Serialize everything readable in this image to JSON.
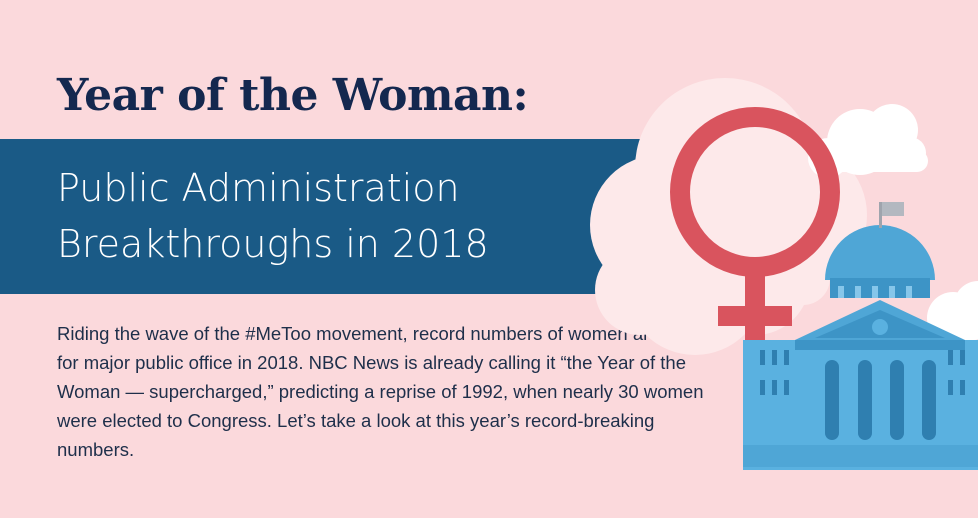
{
  "header": {
    "title": "Year of the Woman:",
    "subtitle_line1": "Public Administration",
    "subtitle_line2": "Breakthroughs in 2018"
  },
  "intro": {
    "text": "Riding the wave of the #MeToo movement, record numbers of women are running for major public office in 2018. NBC News is already calling it “the Year of the Woman — supercharged,” predicting a reprise of 1992, when nearly 30 women were elected to Congress. Let’s take a look at this year’s record-breaking numbers."
  },
  "illustration": {
    "icons": [
      "cloud-icon",
      "female-symbol-icon",
      "capitol-building-icon",
      "flag-icon"
    ]
  },
  "colors": {
    "background": "#fbd9dc",
    "banner": "#1a5a86",
    "title": "#14284f",
    "female_symbol": "#d9545e",
    "building": "#4fa6d6"
  }
}
